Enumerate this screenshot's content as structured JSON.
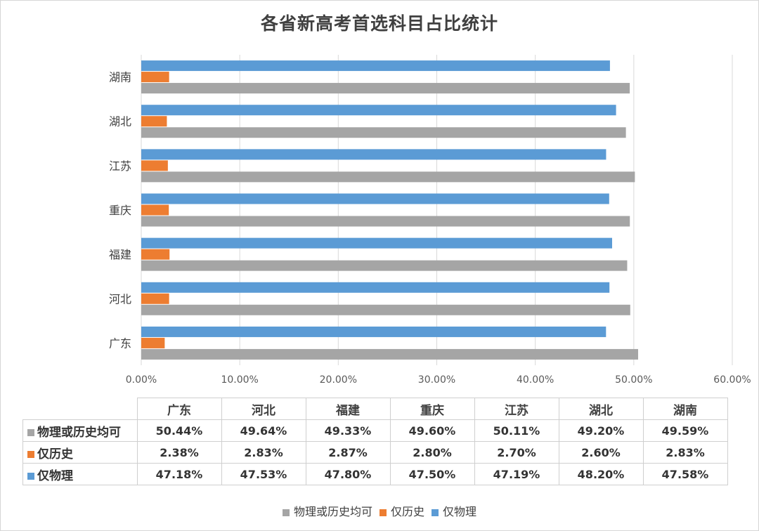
{
  "chart_data": {
    "type": "bar",
    "orientation": "horizontal",
    "title": "各省新高考首选科目占比统计",
    "categories": [
      "广东",
      "河北",
      "福建",
      "重庆",
      "江苏",
      "湖北",
      "湖南"
    ],
    "series": [
      {
        "name": "物理或历史均可",
        "color": "#a5a5a5",
        "values": [
          50.44,
          49.64,
          49.33,
          49.6,
          50.11,
          49.2,
          49.59
        ],
        "labels": [
          "50.44%",
          "49.64%",
          "49.33%",
          "49.60%",
          "50.11%",
          "49.20%",
          "49.59%"
        ]
      },
      {
        "name": "仅历史",
        "color": "#ed7d31",
        "values": [
          2.38,
          2.83,
          2.87,
          2.8,
          2.7,
          2.6,
          2.83
        ],
        "labels": [
          "2.38%",
          "2.83%",
          "2.87%",
          "2.80%",
          "2.70%",
          "2.60%",
          "2.83%"
        ]
      },
      {
        "name": "仅物理",
        "color": "#5b9bd5",
        "values": [
          47.18,
          47.53,
          47.8,
          47.5,
          47.19,
          48.2,
          47.58
        ],
        "labels": [
          "47.18%",
          "47.53%",
          "47.80%",
          "47.50%",
          "47.19%",
          "48.20%",
          "47.58%"
        ]
      }
    ],
    "xlim": [
      0,
      60
    ],
    "x_ticks": [
      "0.00%",
      "10.00%",
      "20.00%",
      "30.00%",
      "40.00%",
      "50.00%",
      "60.00%"
    ],
    "grid": true,
    "legend_position": "bottom"
  }
}
